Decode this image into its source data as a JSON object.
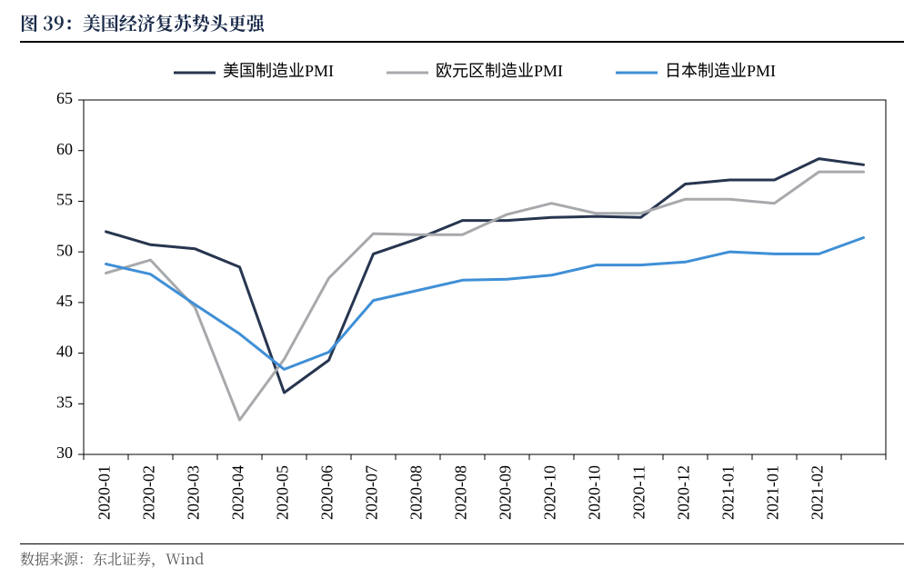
{
  "title": "图 39：美国经济复苏势头更强",
  "source": "数据来源：东北证券，Wind",
  "chart": {
    "type": "line",
    "background_color": "#ffffff",
    "plot_border_color": "#000000",
    "plot_border_width": 1,
    "grid": false,
    "tick_length": 6,
    "line_width": 3,
    "axis_fontsize": 18,
    "axis_font_family": "Times New Roman",
    "legend_fontsize": 18,
    "legend_position": "top-center",
    "legend_swatch_w": 46,
    "legend_swatch_h": 3,
    "x_categories": [
      "2020-01",
      "2020-02",
      "2020-03",
      "2020-04",
      "2020-05",
      "2020-06",
      "2020-07",
      "2020-08",
      "2020-08",
      "2020-09",
      "2020-10",
      "2020-10",
      "2020-11",
      "2020-12",
      "2021-01",
      "2021-01",
      "2021-02",
      ""
    ],
    "x_label_rotation": 90,
    "ylim": [
      30,
      65
    ],
    "yticks": [
      30,
      35,
      40,
      45,
      50,
      55,
      60,
      65
    ],
    "series": [
      {
        "name": "美国制造业PMI",
        "color": "#27354f",
        "values": [
          52.0,
          50.7,
          50.3,
          48.5,
          36.1,
          39.3,
          49.8,
          51.3,
          53.1,
          53.1,
          53.4,
          53.5,
          53.4,
          56.7,
          57.1,
          57.1,
          59.2,
          58.6
        ]
      },
      {
        "name": "欧元区制造业PMI",
        "color": "#a7a9ac",
        "values": [
          47.9,
          49.2,
          44.5,
          33.4,
          39.4,
          47.4,
          51.8,
          51.7,
          51.7,
          53.7,
          54.8,
          53.8,
          53.8,
          55.2,
          55.2,
          54.8,
          57.9,
          57.9
        ]
      },
      {
        "name": "日本制造业PMI",
        "color": "#3f8fd6",
        "values": [
          48.8,
          47.8,
          44.8,
          41.9,
          38.4,
          40.1,
          45.2,
          46.2,
          47.2,
          47.3,
          47.7,
          48.7,
          48.7,
          49.0,
          50.0,
          49.8,
          49.8,
          51.4
        ]
      }
    ]
  }
}
